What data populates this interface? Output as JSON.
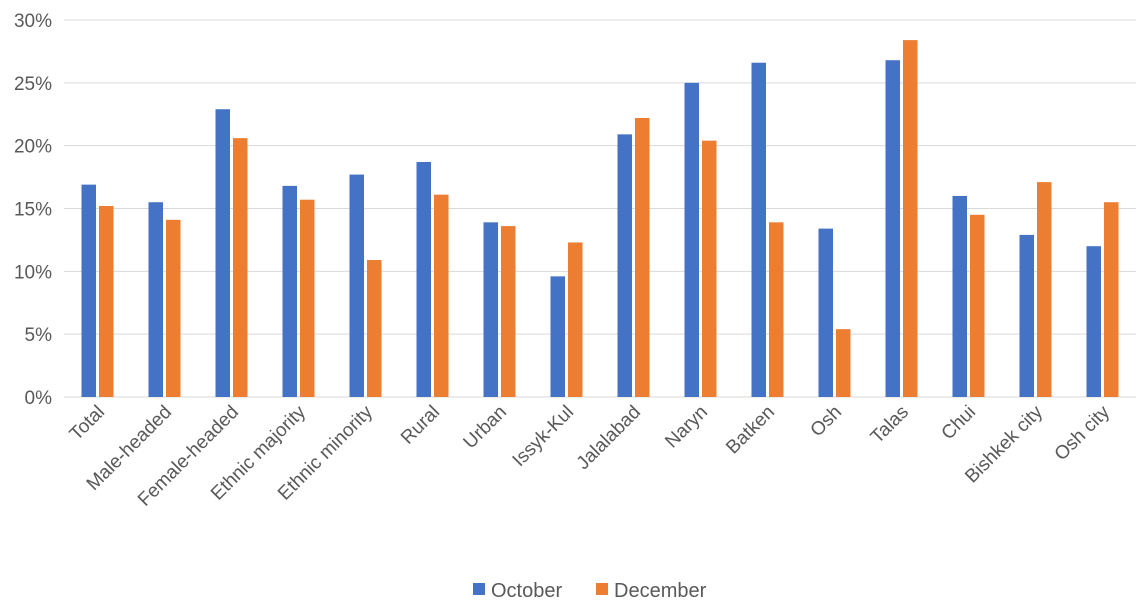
{
  "chart_data": {
    "type": "bar",
    "categories": [
      "Total",
      "Male-headed",
      "Female-headed",
      "Ethnic majority",
      "Ethnic minority",
      "Rural",
      "Urban",
      "Issyk-Kul",
      "Jalalabad",
      "Naryn",
      "Batken",
      "Osh",
      "Talas",
      "Chui",
      "Bishkek city",
      "Osh city"
    ],
    "series": [
      {
        "name": "October",
        "color": "#4472c4",
        "values": [
          16.9,
          15.5,
          22.9,
          16.8,
          17.7,
          18.7,
          13.9,
          9.6,
          20.9,
          25.0,
          26.6,
          13.4,
          26.8,
          16.0,
          12.9,
          12.0
        ]
      },
      {
        "name": "December",
        "color": "#ed7d31",
        "values": [
          15.2,
          14.1,
          20.6,
          15.7,
          10.9,
          16.1,
          13.6,
          12.3,
          22.2,
          20.4,
          13.9,
          5.4,
          28.4,
          14.5,
          17.1,
          15.5
        ]
      }
    ],
    "yticks": [
      "0%",
      "5%",
      "10%",
      "15%",
      "20%",
      "25%",
      "30%"
    ],
    "ylim": [
      0,
      30
    ],
    "grid": true,
    "legend": "bottom",
    "title": "",
    "xlabel": "",
    "ylabel": ""
  }
}
